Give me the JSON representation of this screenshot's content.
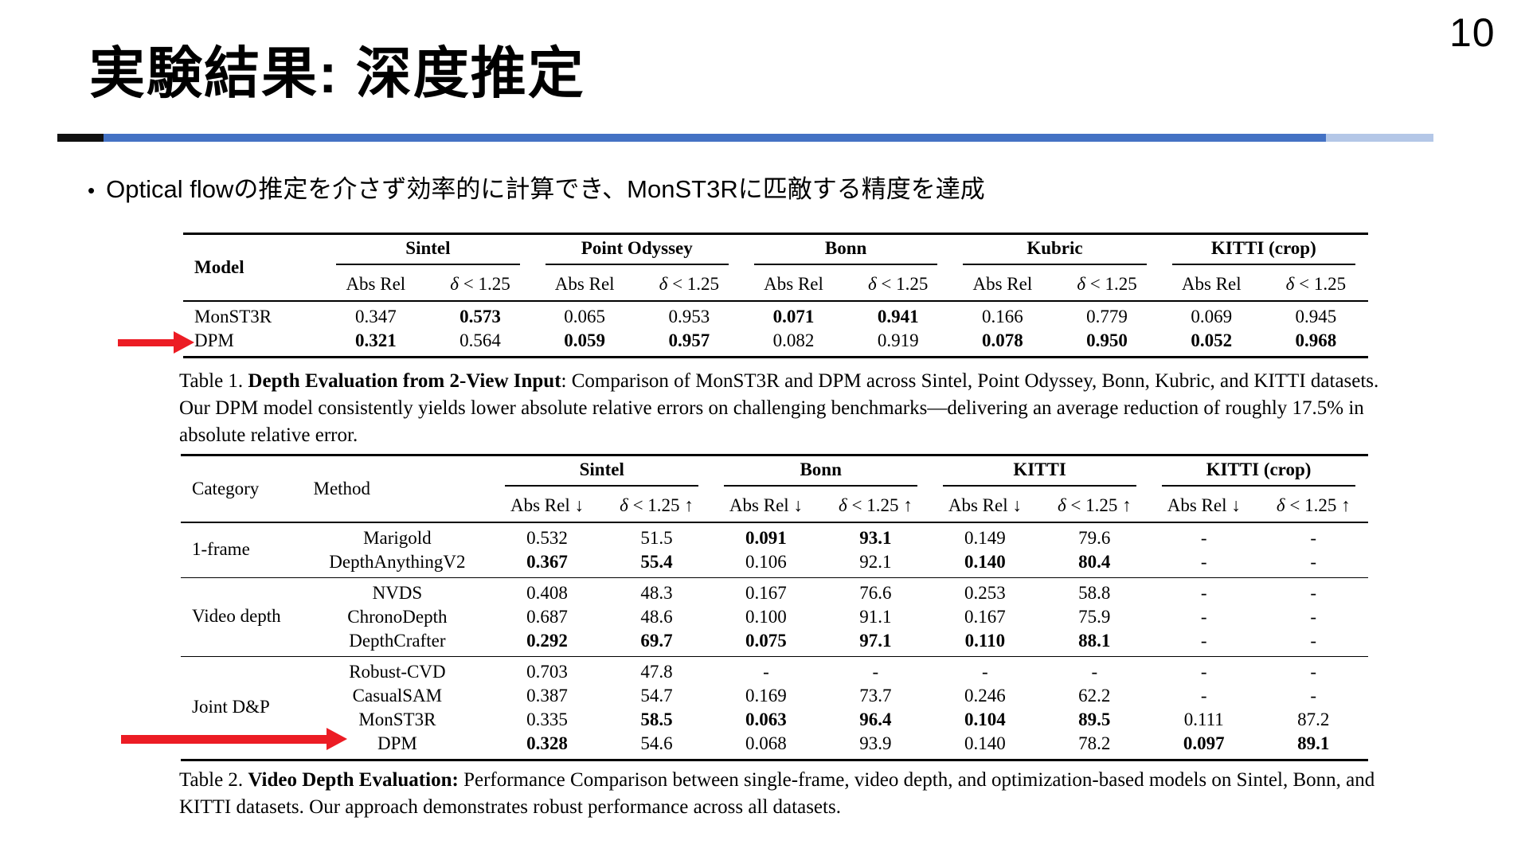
{
  "page": {
    "number": "10",
    "title": "実験結果: 深度推定",
    "bullet_marker": "•",
    "bullet": "Optical flowの推定を介さず効率的に計算でき、MonST3Rに匹敵する精度を達成"
  },
  "colors": {
    "red": "#ec1c24",
    "divider_black": "#111111",
    "divider_blue": "#4472c4",
    "divider_light_blue": "#b4c7e7",
    "text": "#000000"
  },
  "table1": {
    "col_model": "Model",
    "groups": [
      "Sintel",
      "Point Odyssey",
      "Bonn",
      "Kubric",
      "KITTI (crop)"
    ],
    "subheaders": [
      "Abs Rel",
      "δ < 1.25"
    ],
    "rows": [
      {
        "model": "MonST3R",
        "values": [
          {
            "t": "0.347",
            "b": false
          },
          {
            "t": "0.573",
            "b": true
          },
          {
            "t": "0.065",
            "b": false
          },
          {
            "t": "0.953",
            "b": false
          },
          {
            "t": "0.071",
            "b": true
          },
          {
            "t": "0.941",
            "b": true
          },
          {
            "t": "0.166",
            "b": false
          },
          {
            "t": "0.779",
            "b": false
          },
          {
            "t": "0.069",
            "b": false
          },
          {
            "t": "0.945",
            "b": false
          }
        ]
      },
      {
        "model": "DPM",
        "values": [
          {
            "t": "0.321",
            "b": true
          },
          {
            "t": "0.564",
            "b": false
          },
          {
            "t": "0.059",
            "b": true
          },
          {
            "t": "0.957",
            "b": true
          },
          {
            "t": "0.082",
            "b": false
          },
          {
            "t": "0.919",
            "b": false
          },
          {
            "t": "0.078",
            "b": true
          },
          {
            "t": "0.950",
            "b": true
          },
          {
            "t": "0.052",
            "b": true
          },
          {
            "t": "0.968",
            "b": true
          }
        ]
      }
    ],
    "caption_prefix": "Table 1. ",
    "caption_bold": "Depth Evaluation from 2-View Input",
    "caption_rest": ": Comparison of MonST3R and DPM across Sintel, Point Odyssey, Bonn, Kubric, and KITTI datasets. Our DPM model consistently yields lower absolute relative errors on challenging benchmarks—delivering an average reduction of roughly 17.5% in absolute relative error."
  },
  "table2": {
    "col_category": "Category",
    "col_method": "Method",
    "groups": [
      "Sintel",
      "Bonn",
      "KITTI",
      "KITTI (crop)"
    ],
    "subheaders": [
      "Abs Rel ↓",
      "δ < 1.25 ↑"
    ],
    "row_groups": [
      {
        "category": "1-frame",
        "rows": [
          {
            "method": "Marigold",
            "values": [
              {
                "t": "0.532",
                "b": false
              },
              {
                "t": "51.5",
                "b": false
              },
              {
                "t": "0.091",
                "b": true
              },
              {
                "t": "93.1",
                "b": true
              },
              {
                "t": "0.149",
                "b": false
              },
              {
                "t": "79.6",
                "b": false
              },
              {
                "t": "-",
                "b": false
              },
              {
                "t": "-",
                "b": false
              }
            ]
          },
          {
            "method": "DepthAnythingV2",
            "values": [
              {
                "t": "0.367",
                "b": true
              },
              {
                "t": "55.4",
                "b": true
              },
              {
                "t": "0.106",
                "b": false
              },
              {
                "t": "92.1",
                "b": false
              },
              {
                "t": "0.140",
                "b": true
              },
              {
                "t": "80.4",
                "b": true
              },
              {
                "t": "-",
                "b": false
              },
              {
                "t": "-",
                "b": false
              }
            ]
          }
        ]
      },
      {
        "category": "Video depth",
        "rows": [
          {
            "method": "NVDS",
            "values": [
              {
                "t": "0.408",
                "b": false
              },
              {
                "t": "48.3",
                "b": false
              },
              {
                "t": "0.167",
                "b": false
              },
              {
                "t": "76.6",
                "b": false
              },
              {
                "t": "0.253",
                "b": false
              },
              {
                "t": "58.8",
                "b": false
              },
              {
                "t": "-",
                "b": false
              },
              {
                "t": "-",
                "b": false
              }
            ]
          },
          {
            "method": "ChronoDepth",
            "values": [
              {
                "t": "0.687",
                "b": false
              },
              {
                "t": "48.6",
                "b": false
              },
              {
                "t": "0.100",
                "b": false
              },
              {
                "t": "91.1",
                "b": false
              },
              {
                "t": "0.167",
                "b": false
              },
              {
                "t": "75.9",
                "b": false
              },
              {
                "t": "-",
                "b": false
              },
              {
                "t": "-",
                "b": false
              }
            ]
          },
          {
            "method": "DepthCrafter",
            "values": [
              {
                "t": "0.292",
                "b": true
              },
              {
                "t": "69.7",
                "b": true
              },
              {
                "t": "0.075",
                "b": true
              },
              {
                "t": "97.1",
                "b": true
              },
              {
                "t": "0.110",
                "b": true
              },
              {
                "t": "88.1",
                "b": true
              },
              {
                "t": "-",
                "b": false
              },
              {
                "t": "-",
                "b": false
              }
            ]
          }
        ]
      },
      {
        "category": "Joint D&P",
        "rows": [
          {
            "method": "Robust-CVD",
            "values": [
              {
                "t": "0.703",
                "b": false
              },
              {
                "t": "47.8",
                "b": false
              },
              {
                "t": "-",
                "b": false
              },
              {
                "t": "-",
                "b": false
              },
              {
                "t": "-",
                "b": false
              },
              {
                "t": "-",
                "b": false
              },
              {
                "t": "-",
                "b": false
              },
              {
                "t": "-",
                "b": false
              }
            ]
          },
          {
            "method": "CasualSAM",
            "values": [
              {
                "t": "0.387",
                "b": false
              },
              {
                "t": "54.7",
                "b": false
              },
              {
                "t": "0.169",
                "b": false
              },
              {
                "t": "73.7",
                "b": false
              },
              {
                "t": "0.246",
                "b": false
              },
              {
                "t": "62.2",
                "b": false
              },
              {
                "t": "-",
                "b": false
              },
              {
                "t": "-",
                "b": false
              }
            ]
          },
          {
            "method": "MonST3R",
            "values": [
              {
                "t": "0.335",
                "b": false
              },
              {
                "t": "58.5",
                "b": true
              },
              {
                "t": "0.063",
                "b": true
              },
              {
                "t": "96.4",
                "b": true
              },
              {
                "t": "0.104",
                "b": true
              },
              {
                "t": "89.5",
                "b": true
              },
              {
                "t": "0.111",
                "b": false
              },
              {
                "t": "87.2",
                "b": false
              }
            ]
          },
          {
            "method": "DPM",
            "values": [
              {
                "t": "0.328",
                "b": true
              },
              {
                "t": "54.6",
                "b": false
              },
              {
                "t": "0.068",
                "b": false
              },
              {
                "t": "93.9",
                "b": false
              },
              {
                "t": "0.140",
                "b": false
              },
              {
                "t": "78.2",
                "b": false
              },
              {
                "t": "0.097",
                "b": true
              },
              {
                "t": "89.1",
                "b": true
              }
            ]
          }
        ]
      }
    ],
    "caption_prefix": "Table 2. ",
    "caption_bold": "Video Depth Evaluation:",
    "caption_rest": " Performance Comparison between single-frame, video depth, and optimization-based models on Sintel, Bonn, and KITTI datasets. Our approach demonstrates robust performance across all datasets."
  }
}
